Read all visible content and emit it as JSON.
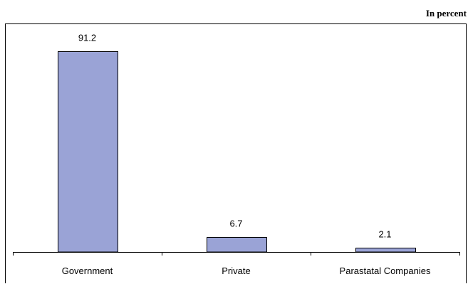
{
  "unit_label": "In percent",
  "chart_data": {
    "type": "bar",
    "title": "",
    "xlabel": "",
    "ylabel": "",
    "unit": "In percent",
    "categories": [
      "Government",
      "Private",
      "Parastatal Companies"
    ],
    "values": [
      91.2,
      6.7,
      2.1
    ],
    "data_labels": [
      "91.2",
      "6.7",
      "2.1"
    ],
    "ylim": [
      0,
      100
    ],
    "grid": false,
    "legend": "none",
    "bar_color": "#9aa3d6",
    "bar_stroke": "#000000"
  }
}
